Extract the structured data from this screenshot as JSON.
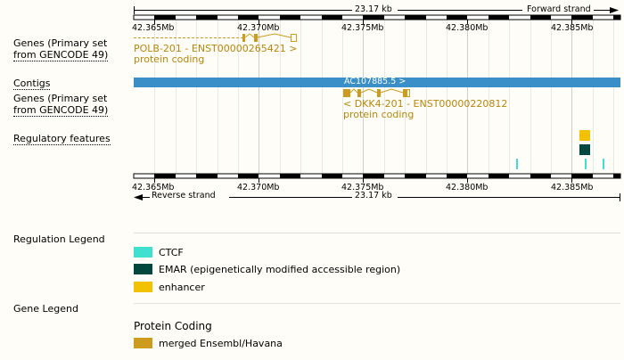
{
  "ruler_top": {
    "span_label": "23.17 kb",
    "strand": "Forward strand"
  },
  "ruler_bottom": {
    "span_label": "23.17 kb",
    "strand": "Reverse strand"
  },
  "ticks": [
    "42.365Mb",
    "42.370Mb",
    "42.375Mb",
    "42.380Mb",
    "42.385Mb"
  ],
  "tracks": {
    "genes_fwd": {
      "label_line1": "Genes (Primary set",
      "label_line2": "from GENCODE 49)"
    },
    "contigs": {
      "label": "Contigs"
    },
    "genes_rev": {
      "label_line1": "Genes (Primary set",
      "label_line2": "from GENCODE 49)"
    },
    "regulatory": {
      "label": "Regulatory features"
    }
  },
  "genes": {
    "polb": {
      "name": "POLB-201 - ENST00000265421 >",
      "biotype": "protein coding"
    },
    "dkk4": {
      "name": "< DKK4-201 - ENST00000220812",
      "biotype": "protein coding"
    }
  },
  "contig": {
    "name": "AC107885.5 >"
  },
  "regulation_legend": {
    "title": "Regulation Legend",
    "items": [
      {
        "label": "CTCF",
        "color": "#40e0d0"
      },
      {
        "label": "EMAR (epigenetically modified accessible region)",
        "color": "#00473d"
      },
      {
        "label": "enhancer",
        "color": "#f2c100"
      }
    ]
  },
  "gene_legend": {
    "title": "Gene Legend",
    "subtitle": "Protein Coding",
    "items": [
      {
        "label": "merged Ensembl/Havana",
        "color": "#cd9b1d"
      }
    ]
  },
  "colors": {
    "gene": "#cd9b1d",
    "contig": "#3a8fc9",
    "ruler": "#000000"
  }
}
